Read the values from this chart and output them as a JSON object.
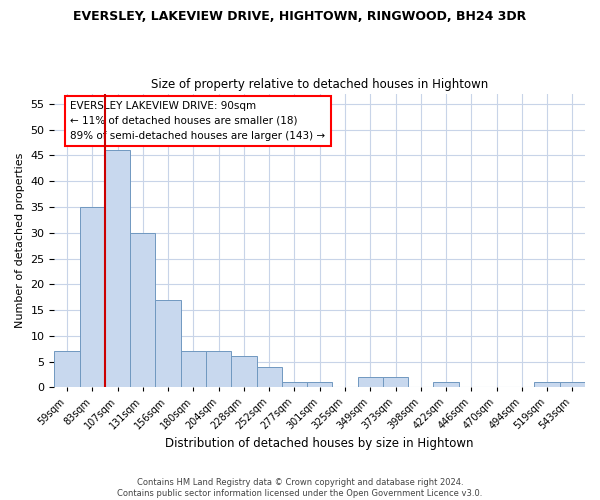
{
  "title_line1": "EVERSLEY, LAKEVIEW DRIVE, HIGHTOWN, RINGWOOD, BH24 3DR",
  "title_line2": "Size of property relative to detached houses in Hightown",
  "xlabel": "Distribution of detached houses by size in Hightown",
  "ylabel": "Number of detached properties",
  "bar_color": "#c8d8ee",
  "bar_edgecolor": "#7098c0",
  "vline_color": "#cc0000",
  "categories": [
    "59sqm",
    "83sqm",
    "107sqm",
    "131sqm",
    "156sqm",
    "180sqm",
    "204sqm",
    "228sqm",
    "252sqm",
    "277sqm",
    "301sqm",
    "325sqm",
    "349sqm",
    "373sqm",
    "398sqm",
    "422sqm",
    "446sqm",
    "470sqm",
    "494sqm",
    "519sqm",
    "543sqm"
  ],
  "values": [
    7,
    35,
    46,
    30,
    17,
    7,
    7,
    6,
    4,
    1,
    1,
    0,
    2,
    2,
    0,
    1,
    0,
    0,
    0,
    1,
    1
  ],
  "ylim": [
    0,
    57
  ],
  "yticks": [
    0,
    5,
    10,
    15,
    20,
    25,
    30,
    35,
    40,
    45,
    50,
    55
  ],
  "annotation_title": "EVERSLEY LAKEVIEW DRIVE: 90sqm",
  "annotation_line1": "← 11% of detached houses are smaller (18)",
  "annotation_line2": "89% of semi-detached houses are larger (143) →",
  "footnote_line1": "Contains HM Land Registry data © Crown copyright and database right 2024.",
  "footnote_line2": "Contains public sector information licensed under the Open Government Licence v3.0.",
  "background_color": "#ffffff",
  "grid_color": "#c8d4e8",
  "vline_bar_index": 1
}
